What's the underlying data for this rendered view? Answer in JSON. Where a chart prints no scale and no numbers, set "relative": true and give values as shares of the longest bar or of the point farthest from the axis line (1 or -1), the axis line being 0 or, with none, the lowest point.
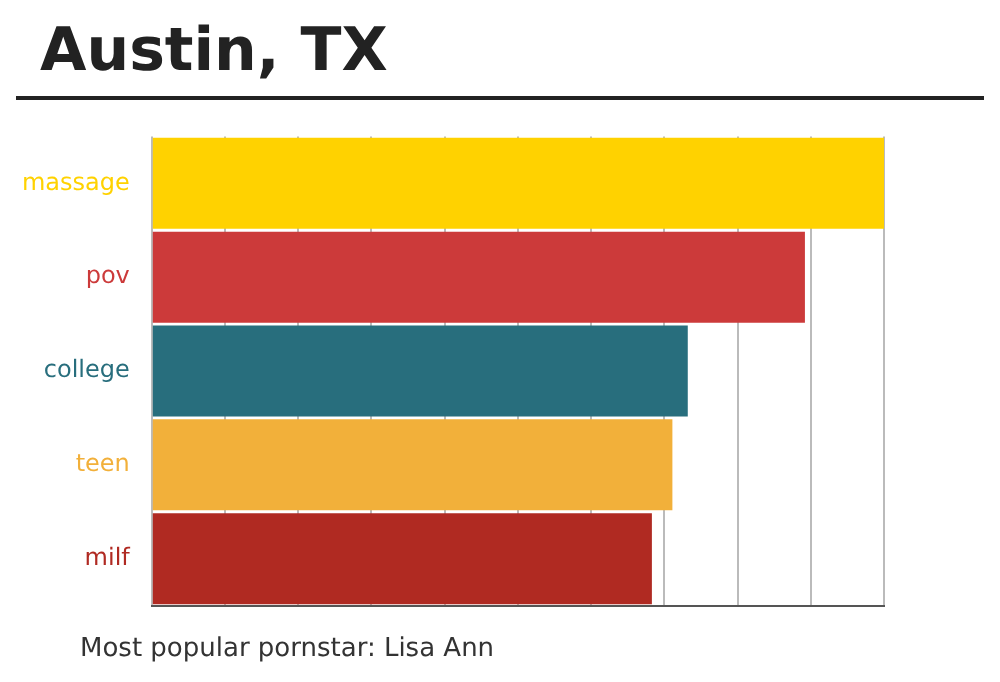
{
  "chart_data": {
    "type": "bar",
    "title": "Austin, TX",
    "orientation": "horizontal",
    "relative": true,
    "categories": [
      "massage",
      "pov",
      "college",
      "teen",
      "milf"
    ],
    "values": [
      1,
      0.892,
      0.732,
      0.711,
      0.683
    ],
    "colors": [
      "#ffd200",
      "#cc3a3a",
      "#286e7d",
      "#f2b03a",
      "#b02a22"
    ],
    "grid": "x",
    "legend": false,
    "annotations": [
      "Most popular pornstar: Lisa Ann"
    ]
  }
}
